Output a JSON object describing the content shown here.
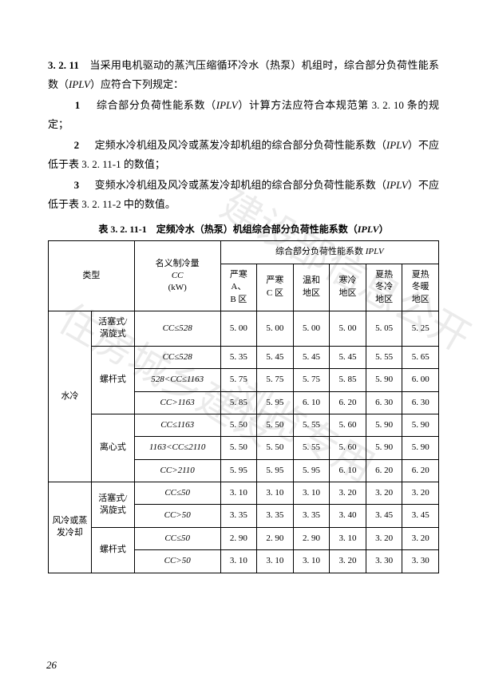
{
  "clause": {
    "number": "3. 2. 11",
    "intro": "　当采用电机驱动的蒸汽压缩循环冷水（热泵）机组时，综合部分负荷性能系数（",
    "iplv": "IPLV",
    "intro2": "）应符合下列规定："
  },
  "items": [
    {
      "n": "1",
      "t1": "　综合部分负荷性能系数（",
      "iplv": "IPLV",
      "t2": "）计算方法应符合本规范第 3. 2. 10 条的规定；"
    },
    {
      "n": "2",
      "t1": "　定频水冷机组及风冷或蒸发冷却机组的综合部分负荷性能系数（",
      "iplv": "IPLV",
      "t2": "）不应低于表 3. 2. 11-1 的数值；"
    },
    {
      "n": "3",
      "t1": "　变频水冷机组及风冷或蒸发冷却机组的综合部分负荷性能系数（",
      "iplv": "IPLV",
      "t2": "）不应低于表 3. 2. 11-2 中的数值。"
    }
  ],
  "tableCaption": {
    "pre": "表 3. 2. 11-1　定频冷水（热泵）机组综合部分负荷性能系数（",
    "iplv": "IPLV",
    "post": "）"
  },
  "headers": {
    "type": "类型",
    "cc": {
      "l1": "名义制冷量",
      "sym": "CC",
      "unit": "(kW)"
    },
    "group": "综合部分负荷性能系数 ",
    "groupIplv": "IPLV",
    "regions": [
      "严寒\nA、\nB 区",
      "严寒\nC 区",
      "温和\n地区",
      "寒冷\n地区",
      "夏热\n冬冷\n地区",
      "夏热\n冬暖\n地区"
    ]
  },
  "majors": {
    "water": "水冷",
    "air": "风冷或蒸发冷却"
  },
  "subtypes": {
    "piston": "活塞式/\n涡旋式",
    "screw": "螺杆式",
    "centr": "离心式",
    "piston2": "活塞式/\n涡旋式",
    "screw2": "螺杆式"
  },
  "rows": [
    {
      "cc": "CC≤528",
      "v": [
        "5. 00",
        "5. 00",
        "5. 00",
        "5. 00",
        "5. 05",
        "5. 25"
      ]
    },
    {
      "cc": "CC≤528",
      "v": [
        "5. 35",
        "5. 45",
        "5. 45",
        "5. 45",
        "5. 55",
        "5. 65"
      ]
    },
    {
      "cc": "528<CC≤1163",
      "v": [
        "5. 75",
        "5. 75",
        "5. 75",
        "5. 85",
        "5. 90",
        "6. 00"
      ]
    },
    {
      "cc": "CC>1163",
      "v": [
        "5. 85",
        "5. 95",
        "6. 10",
        "6. 20",
        "6. 30",
        "6. 30"
      ]
    },
    {
      "cc": "CC≤1163",
      "v": [
        "5. 50",
        "5. 50",
        "5. 55",
        "5. 60",
        "5. 90",
        "5. 90"
      ]
    },
    {
      "cc": "1163<CC≤2110",
      "v": [
        "5. 50",
        "5. 50",
        "5. 55",
        "5. 60",
        "5. 90",
        "5. 90"
      ]
    },
    {
      "cc": "CC>2110",
      "v": [
        "5. 95",
        "5. 95",
        "5. 95",
        "6. 10",
        "6. 20",
        "6. 20"
      ]
    },
    {
      "cc": "CC≤50",
      "v": [
        "3. 10",
        "3. 10",
        "3. 10",
        "3. 20",
        "3. 20",
        "3. 20"
      ]
    },
    {
      "cc": "CC>50",
      "v": [
        "3. 35",
        "3. 35",
        "3. 35",
        "3. 40",
        "3. 45",
        "3. 45"
      ]
    },
    {
      "cc": "CC≤50",
      "v": [
        "2. 90",
        "2. 90",
        "2. 90",
        "3. 10",
        "3. 20",
        "3. 20"
      ]
    },
    {
      "cc": "CC>50",
      "v": [
        "3. 10",
        "3. 10",
        "3. 10",
        "3. 20",
        "3. 30",
        "3. 30"
      ]
    }
  ],
  "pageNumber": "26",
  "watermarks": {
    "a": "住房城乡建设",
    "b": "建设部信息公开",
    "c": "浏览专用"
  }
}
